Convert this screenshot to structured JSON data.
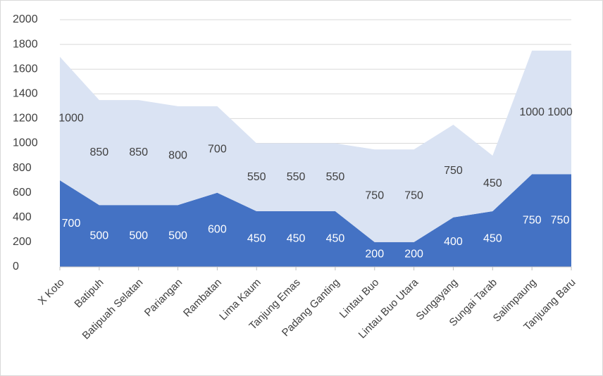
{
  "chart_data": {
    "type": "stacked-area",
    "categories": [
      "X Koto",
      "Batipuh",
      "Batipuah Selatan",
      "Pariangan",
      "Rambatan",
      "Lima Kaum",
      "Tanjung Emas",
      "Padang Ganting",
      "Lintau Buo",
      "Lintau Buo Utara",
      "Sungayang",
      "Sungai Tarab",
      "Salimpaung",
      "Tanjuang Baru"
    ],
    "series": [
      {
        "color": "#4472c4",
        "label_color": "#ffffff",
        "values": [
          700,
          500,
          500,
          500,
          600,
          450,
          450,
          450,
          200,
          200,
          400,
          450,
          750,
          750
        ]
      },
      {
        "color": "#dae3f3",
        "label_color": "#404040",
        "values": [
          1000,
          850,
          850,
          800,
          700,
          550,
          550,
          550,
          750,
          750,
          750,
          450,
          1000,
          1000
        ]
      }
    ],
    "ylim": [
      0,
      2000
    ],
    "yticks": [
      0,
      200,
      400,
      600,
      800,
      1000,
      1200,
      1400,
      1600,
      1800,
      2000
    ],
    "grid": true
  }
}
